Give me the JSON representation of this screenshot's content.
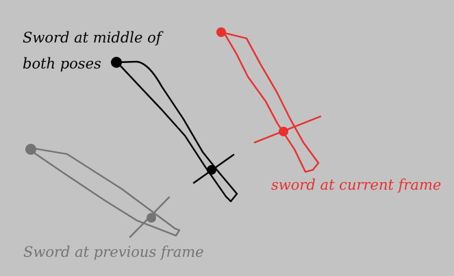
{
  "labels": {
    "middle_line1": "Sword at middle of",
    "middle_line2": "both poses",
    "current": "sword at current frame",
    "previous": "Sword at previous frame"
  },
  "colors": {
    "background": "#c3c3c3",
    "middle": "#000000",
    "current": "#e8302e",
    "previous": "#747474"
  }
}
